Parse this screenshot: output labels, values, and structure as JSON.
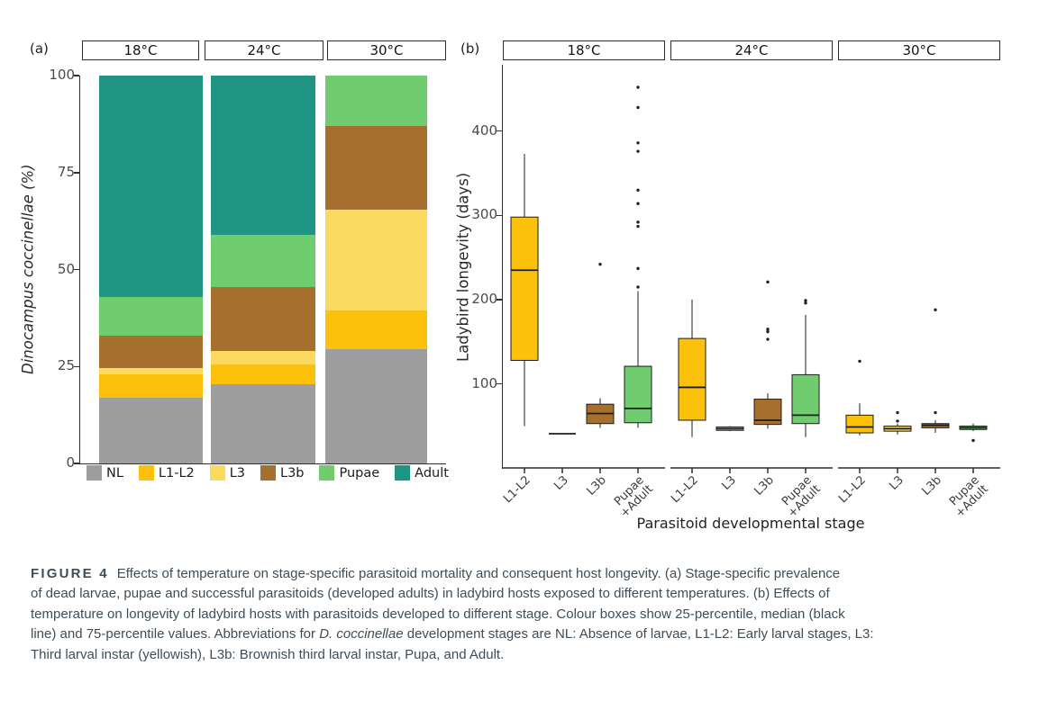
{
  "figure": {
    "panel_a": {
      "label": "(a)"
    },
    "panel_b": {
      "label": "(b)"
    }
  },
  "colors": {
    "NL": "#9e9e9e",
    "L1-L2": "#fcc10a",
    "L3": "#fcda5f",
    "L3b": "#a76f2e",
    "Pupae": "#6fcd6f",
    "Adult": "#209583",
    "axis": "#2f2f2f",
    "box_stroke": "#1c1c1c",
    "outlier": "#222222"
  },
  "chart_data": [
    {
      "id": "panel_a",
      "type": "bar",
      "subtype": "percent-stacked",
      "categories": [
        "18°C",
        "24°C",
        "30°C"
      ],
      "series": [
        {
          "name": "NL",
          "values": [
            17,
            20.5,
            29.5
          ]
        },
        {
          "name": "L1-L2",
          "values": [
            6,
            5,
            10
          ]
        },
        {
          "name": "L3",
          "values": [
            1.5,
            3.5,
            26
          ]
        },
        {
          "name": "L3b",
          "values": [
            8.5,
            16.5,
            21.5
          ]
        },
        {
          "name": "Pupae",
          "values": [
            10,
            13.5,
            13
          ]
        },
        {
          "name": "Adult",
          "values": [
            57,
            41,
            0
          ]
        }
      ],
      "ylabel": "Dinocampus coccinellae (%)",
      "ylim": [
        0,
        100
      ],
      "yticks": [
        0,
        25,
        50,
        75,
        100
      ],
      "legend_position": "bottom",
      "grid": false
    },
    {
      "id": "panel_b",
      "type": "boxplot",
      "ylabel": "Ladybird longevity (days)",
      "xlabel": "Parasitoid developmental stage",
      "ylim": [
        20,
        470
      ],
      "yticks": [
        100,
        200,
        300,
        400
      ],
      "stage_order": [
        "L1-L2",
        "L3",
        "L3b",
        "Pupae\n+Adult"
      ],
      "grid": false,
      "facets": [
        {
          "temp": "18°C",
          "boxes": [
            {
              "stage": "L1-L2",
              "color": "L1-L2",
              "low": 50,
              "q1": 128,
              "median": 235,
              "q3": 298,
              "high": 373,
              "outliers": []
            },
            {
              "stage": "L3",
              "color": "L3",
              "low": null,
              "q1": 41,
              "median": 41,
              "q3": 41,
              "high": null,
              "outliers": []
            },
            {
              "stage": "L3b",
              "color": "L3b",
              "low": 48,
              "q1": 53,
              "median": 65,
              "q3": 76,
              "high": 83,
              "outliers": [
                242
              ]
            },
            {
              "stage": "Pupae\n+Adult",
              "color": "Pupae",
              "low": 48,
              "q1": 54,
              "median": 71,
              "q3": 121,
              "high": 210,
              "outliers": [
                452,
                428,
                386,
                376,
                330,
                314,
                292,
                287,
                237,
                215
              ]
            }
          ]
        },
        {
          "temp": "24°C",
          "boxes": [
            {
              "stage": "L1-L2",
              "color": "L1-L2",
              "low": 37,
              "q1": 57,
              "median": 96,
              "q3": 154,
              "high": 200,
              "outliers": []
            },
            {
              "stage": "L3",
              "color": "L3",
              "low": 44,
              "q1": 45,
              "median": 47,
              "q3": 49,
              "high": 50,
              "outliers": []
            },
            {
              "stage": "L3b",
              "color": "L3b",
              "low": 47,
              "q1": 52,
              "median": 57,
              "q3": 82,
              "high": 89,
              "outliers": [
                221,
                165,
                162,
                153
              ]
            },
            {
              "stage": "Pupae\n+Adult",
              "color": "Pupae",
              "low": 37,
              "q1": 53,
              "median": 63,
              "q3": 111,
              "high": 182,
              "outliers": [
                199,
                196
              ]
            }
          ]
        },
        {
          "temp": "30°C",
          "boxes": [
            {
              "stage": "L1-L2",
              "color": "L1-L2",
              "low": 39,
              "q1": 42,
              "median": 49,
              "q3": 63,
              "high": 77,
              "outliers": [
                127
              ]
            },
            {
              "stage": "L3",
              "color": "L3",
              "low": 40,
              "q1": 44,
              "median": 47,
              "q3": 50,
              "high": 53,
              "outliers": [
                66,
                56
              ]
            },
            {
              "stage": "L3b",
              "color": "L3b",
              "low": 42,
              "q1": 48,
              "median": 51,
              "q3": 53,
              "high": 57,
              "outliers": [
                188,
                66
              ]
            },
            {
              "stage": "Pupae\n+Adult",
              "color": "Pupae",
              "low": 44,
              "q1": 46,
              "median": 48,
              "q3": 50,
              "high": 53,
              "outliers": [
                33
              ]
            }
          ]
        }
      ]
    }
  ],
  "caption": {
    "lines": [
      [
        {
          "text": "FIGURE 4",
          "style": "bold-spaced"
        },
        {
          "text": "Effects of temperature on stage-specific parasitoid mortality and consequent host longevity. (a) Stage-specific prevalence",
          "style": "normal"
        }
      ],
      [
        {
          "text": "of dead larvae, pupae and successful parasitoids (developed adults) in ladybird hosts exposed to different temperatures. (b) Effects of",
          "style": "normal"
        }
      ],
      [
        {
          "text": "temperature on longevity of ladybird hosts with parasitoids developed to different stage. Colour boxes show 25-percentile, median (black",
          "style": "normal"
        }
      ],
      [
        {
          "text": "line) and 75-percentile values. Abbreviations for ",
          "style": "normal"
        },
        {
          "text": "D. coccinellae",
          "style": "italic"
        },
        {
          "text": " development stages are NL: Absence of larvae, L1-L2: Early larval stages, L3:",
          "style": "normal"
        }
      ],
      [
        {
          "text": "Third larval instar (yellowish), L3b: Brownish third larval instar, Pupa, and Adult.",
          "style": "normal"
        }
      ]
    ]
  }
}
